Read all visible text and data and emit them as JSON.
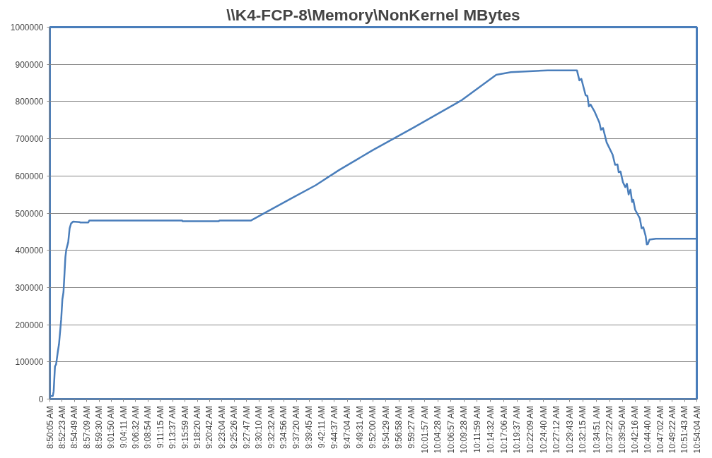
{
  "chart_data": {
    "type": "line",
    "title": "\\\\K4-FCP-8\\Memory\\NonKernel MBytes",
    "x": [
      8.8354,
      8.8439,
      8.8469,
      8.8511,
      8.8546,
      8.8603,
      8.864,
      8.871,
      8.8747,
      8.8783,
      8.8844,
      8.8873,
      8.8934,
      8.8979,
      8.9024,
      8.9085,
      8.9303,
      8.9317,
      8.9576,
      8.9607,
      9.2574,
      9.2588,
      9.374,
      9.3763,
      9.4764,
      9.5349,
      9.6091,
      9.6838,
      9.7589,
      9.8656,
      9.9961,
      10.1507,
      10.2605,
      10.3076,
      10.4246,
      10.5183,
      10.5261,
      10.5324,
      10.546,
      10.5516,
      10.5564,
      10.5619,
      10.574,
      10.5898,
      10.5952,
      10.6015,
      10.6132,
      10.6323,
      10.6401,
      10.6477,
      10.6516,
      10.6575,
      10.6652,
      10.6727,
      10.6779,
      10.6833,
      10.6891,
      10.6945,
      10.6981,
      10.7042,
      10.7191,
      10.7249,
      10.7302,
      10.7376,
      10.7414,
      10.7449,
      10.7502,
      10.7706,
      10.9011
    ],
    "series": [
      {
        "color": "#4a7ebb",
        "values": [
          8000,
          8000,
          21000,
          88000,
          93000,
          128000,
          148000,
          215000,
          268000,
          288000,
          382000,
          402000,
          422000,
          459000,
          472000,
          477000,
          476000,
          475000,
          475000,
          480000,
          480000,
          478000,
          478000,
          480000,
          480000,
          507000,
          541000,
          575000,
          616000,
          669000,
          730000,
          804000,
          872000,
          879000,
          884000,
          884000,
          857000,
          861000,
          817000,
          815000,
          787000,
          792000,
          774000,
          744000,
          724000,
          729000,
          690000,
          657000,
          630000,
          631000,
          610000,
          612000,
          583000,
          570000,
          579000,
          550000,
          563000,
          530000,
          536000,
          509000,
          486000,
          459000,
          462000,
          439000,
          416000,
          417000,
          429000,
          431000,
          431000
        ]
      }
    ],
    "xlim": [
      8.8347,
      10.9011
    ],
    "xticks": [
      {
        "value": 8.8347,
        "label": "8:50:05 AM"
      },
      {
        "value": 8.8731,
        "label": "8:52:23 AM"
      },
      {
        "value": 8.9136,
        "label": "8:54:49 AM"
      },
      {
        "value": 8.9525,
        "label": "8:57:09 AM"
      },
      {
        "value": 8.9917,
        "label": "8:59:30 AM"
      },
      {
        "value": 9.0306,
        "label": "9:01:50 AM"
      },
      {
        "value": 9.0697,
        "label": "9:04:11 AM"
      },
      {
        "value": 9.1089,
        "label": "9:06:32 AM"
      },
      {
        "value": 9.1483,
        "label": "9:08:54 AM"
      },
      {
        "value": 9.1875,
        "label": "9:11:15 AM"
      },
      {
        "value": 9.2269,
        "label": "9:13:37 AM"
      },
      {
        "value": 9.2664,
        "label": "9:15:59 AM"
      },
      {
        "value": 9.3056,
        "label": "9:18:20 AM"
      },
      {
        "value": 9.345,
        "label": "9:20:42 AM"
      },
      {
        "value": 9.3844,
        "label": "9:23:04 AM"
      },
      {
        "value": 9.4239,
        "label": "9:25:26 AM"
      },
      {
        "value": 9.4631,
        "label": "9:27:47 AM"
      },
      {
        "value": 9.5028,
        "label": "9:30:10 AM"
      },
      {
        "value": 9.5422,
        "label": "9:32:32 AM"
      },
      {
        "value": 9.5822,
        "label": "9:34:56 AM"
      },
      {
        "value": 9.6222,
        "label": "9:37:20 AM"
      },
      {
        "value": 9.6625,
        "label": "9:39:45 AM"
      },
      {
        "value": 9.7031,
        "label": "9:42:11 AM"
      },
      {
        "value": 9.7436,
        "label": "9:44:37 AM"
      },
      {
        "value": 9.7844,
        "label": "9:47:04 AM"
      },
      {
        "value": 9.8253,
        "label": "9:49:31 AM"
      },
      {
        "value": 9.8667,
        "label": "9:52:00 AM"
      },
      {
        "value": 9.9081,
        "label": "9:54:29 AM"
      },
      {
        "value": 9.9494,
        "label": "9:56:58 AM"
      },
      {
        "value": 9.9908,
        "label": "9:59:27 AM"
      },
      {
        "value": 10.0325,
        "label": "10:01:57 AM"
      },
      {
        "value": 10.0744,
        "label": "10:04:28 AM"
      },
      {
        "value": 10.1158,
        "label": "10:06:57 AM"
      },
      {
        "value": 10.1578,
        "label": "10:09:28 AM"
      },
      {
        "value": 10.1997,
        "label": "10:11:59 AM"
      },
      {
        "value": 10.2422,
        "label": "10:14:32 AM"
      },
      {
        "value": 10.285,
        "label": "10:17:06 AM"
      },
      {
        "value": 10.3269,
        "label": "10:19:37 AM"
      },
      {
        "value": 10.3692,
        "label": "10:22:09 AM"
      },
      {
        "value": 10.4111,
        "label": "10:24:40 AM"
      },
      {
        "value": 10.4533,
        "label": "10:27:12 AM"
      },
      {
        "value": 10.4953,
        "label": "10:29:43 AM"
      },
      {
        "value": 10.5375,
        "label": "10:32:15 AM"
      },
      {
        "value": 10.5808,
        "label": "10:34:51 AM"
      },
      {
        "value": 10.6228,
        "label": "10:37:22 AM"
      },
      {
        "value": 10.6639,
        "label": "10:39:50 AM"
      },
      {
        "value": 10.7044,
        "label": "10:42:16 AM"
      },
      {
        "value": 10.7444,
        "label": "10:44:40 AM"
      },
      {
        "value": 10.7839,
        "label": "10:47:02 AM"
      },
      {
        "value": 10.8228,
        "label": "10:49:22 AM"
      },
      {
        "value": 10.8619,
        "label": "10:51:43 AM"
      },
      {
        "value": 10.9011,
        "label": "10:54:04 AM"
      }
    ],
    "ylim": [
      0,
      1000000
    ],
    "yticks": [
      0,
      100000,
      200000,
      300000,
      400000,
      500000,
      600000,
      700000,
      800000,
      900000,
      1000000
    ],
    "grid": "y",
    "marker": "none",
    "line_style": "solid"
  }
}
